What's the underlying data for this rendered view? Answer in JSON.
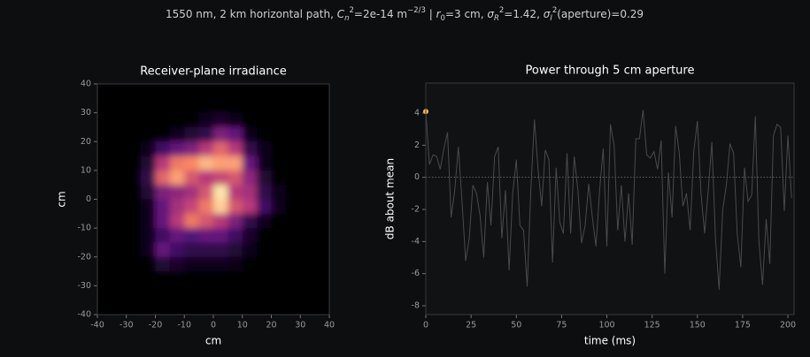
{
  "suptitle": [
    {
      "text": "1550 nm, 2 km horizontal path, "
    },
    {
      "text": "C",
      "italic": true
    },
    {
      "text": "n",
      "sub": true,
      "italic": true
    },
    {
      "text": "2",
      "sup": true
    },
    {
      "text": "=2e-14 m"
    },
    {
      "text": "−2/3",
      "sup": true
    },
    {
      "text": "  |  "
    },
    {
      "text": "r",
      "italic": true
    },
    {
      "text": "0",
      "sub": true
    },
    {
      "text": "=3 cm, "
    },
    {
      "text": "σ",
      "italic": true
    },
    {
      "text": "R",
      "sub": true,
      "italic": true
    },
    {
      "text": "2",
      "sup": true
    },
    {
      "text": "=1.42, "
    },
    {
      "text": "σ",
      "italic": true
    },
    {
      "text": "I",
      "sub": true,
      "italic": true
    },
    {
      "text": "2",
      "sup": true
    },
    {
      "text": "(aperture)=0.29"
    }
  ],
  "chart_data": [
    {
      "type": "heatmap",
      "title": "Receiver-plane irradiance",
      "xlabel": "cm",
      "ylabel": "cm",
      "xlim": [
        -40,
        40
      ],
      "ylim": [
        -40,
        40
      ],
      "xticks": [
        -40,
        -30,
        -20,
        -10,
        0,
        10,
        20,
        30,
        40
      ],
      "yticks": [
        -40,
        -30,
        -20,
        -10,
        0,
        10,
        20,
        30,
        40
      ],
      "colormap": "magma",
      "z": [
        [
          0,
          0,
          0,
          0,
          0,
          0,
          0,
          0,
          0,
          0,
          0,
          0,
          0,
          0,
          0,
          0
        ],
        [
          0,
          0,
          0,
          0,
          0,
          0,
          0,
          0,
          0,
          0,
          0,
          0,
          0,
          0,
          0,
          0
        ],
        [
          0,
          0,
          0,
          0,
          0,
          0,
          0,
          0.05,
          0.08,
          0.05,
          0,
          0,
          0,
          0,
          0,
          0
        ],
        [
          0,
          0,
          0,
          0,
          0,
          0.05,
          0.1,
          0.15,
          0.35,
          0.3,
          0.05,
          0,
          0,
          0,
          0,
          0
        ],
        [
          0,
          0,
          0,
          0.05,
          0.2,
          0.3,
          0.35,
          0.5,
          0.65,
          0.5,
          0.15,
          0.05,
          0,
          0,
          0,
          0
        ],
        [
          0,
          0,
          0,
          0.1,
          0.5,
          0.7,
          0.75,
          0.85,
          0.8,
          0.8,
          0.3,
          0.05,
          0,
          0,
          0,
          0
        ],
        [
          0,
          0,
          0,
          0.15,
          0.65,
          0.8,
          0.6,
          0.5,
          0.55,
          0.6,
          0.4,
          0.1,
          0,
          0,
          0,
          0
        ],
        [
          0,
          0,
          0,
          0.1,
          0.35,
          0.4,
          0.45,
          0.6,
          0.95,
          0.5,
          0.45,
          0.15,
          0.05,
          0,
          0,
          0
        ],
        [
          0,
          0,
          0,
          0.05,
          0.3,
          0.45,
          0.55,
          0.7,
          0.9,
          0.6,
          0.5,
          0.2,
          0.05,
          0,
          0,
          0
        ],
        [
          0,
          0,
          0,
          0.05,
          0.3,
          0.5,
          0.7,
          0.6,
          0.5,
          0.35,
          0.15,
          0.05,
          0,
          0,
          0,
          0
        ],
        [
          0,
          0,
          0,
          0.05,
          0.2,
          0.3,
          0.25,
          0.3,
          0.3,
          0.2,
          0.08,
          0,
          0,
          0,
          0,
          0
        ],
        [
          0,
          0,
          0,
          0.05,
          0.3,
          0.2,
          0.15,
          0.15,
          0.15,
          0.1,
          0.05,
          0,
          0,
          0,
          0,
          0
        ],
        [
          0,
          0,
          0,
          0,
          0.1,
          0.08,
          0.05,
          0.05,
          0.05,
          0.03,
          0,
          0,
          0,
          0,
          0,
          0
        ],
        [
          0,
          0,
          0,
          0,
          0,
          0,
          0,
          0,
          0,
          0,
          0,
          0,
          0,
          0,
          0,
          0
        ],
        [
          0,
          0,
          0,
          0,
          0,
          0,
          0,
          0,
          0,
          0,
          0,
          0,
          0,
          0,
          0,
          0
        ],
        [
          0,
          0,
          0,
          0,
          0,
          0,
          0,
          0,
          0,
          0,
          0,
          0,
          0,
          0,
          0,
          0
        ]
      ]
    },
    {
      "type": "line",
      "title": "Power through 5 cm aperture",
      "xlabel": "time (ms)",
      "ylabel": "dB about mean",
      "xlim": [
        0,
        203.4
      ],
      "ylim": [
        -8.55,
        5.87
      ],
      "xticks": [
        0,
        25,
        50,
        75,
        100,
        125,
        150,
        175,
        200
      ],
      "yticks": [
        -8,
        -6,
        -4,
        -2,
        0,
        2,
        4
      ],
      "reference_line": 0,
      "x": [
        0,
        2,
        4,
        6,
        8,
        10,
        12,
        14,
        16,
        18,
        20,
        22,
        24,
        26,
        28,
        30,
        32,
        34,
        36,
        38,
        40,
        42,
        44,
        46,
        48,
        50,
        52,
        54,
        56,
        58,
        60,
        62,
        64,
        66,
        68,
        70,
        72,
        74,
        76,
        78,
        80,
        82,
        84,
        86,
        88,
        90,
        92,
        94,
        96,
        98,
        100,
        102,
        104,
        106,
        108,
        110,
        112,
        114,
        116,
        118,
        120,
        122,
        124,
        126,
        128,
        130,
        132,
        134,
        136,
        138,
        140,
        142,
        144,
        146,
        148,
        150,
        152,
        154,
        156,
        158,
        160,
        162,
        164,
        166,
        168,
        170,
        172,
        174,
        176,
        178,
        180,
        182,
        184,
        186,
        188,
        190,
        192,
        194,
        196,
        198,
        200,
        202
      ],
      "series": [
        {
          "color": "#4a4a4e",
          "values": [
            4.1,
            0.8,
            1.4,
            1.3,
            0.5,
            1.8,
            2.8,
            -2.5,
            -0.8,
            1.9,
            -1.5,
            -5.2,
            -3.8,
            -0.5,
            -1.0,
            -2.4,
            -5.0,
            -0.3,
            -3.0,
            1.3,
            1.9,
            -3.8,
            -0.8,
            -5.8,
            -1.0,
            1.1,
            -3.0,
            -3.3,
            -6.8,
            -0.8,
            3.6,
            0.5,
            -1.8,
            1.7,
            1.1,
            -5.3,
            0.6,
            -2.8,
            -3.5,
            1.5,
            -3.5,
            1.3,
            -0.8,
            -4.1,
            -3.0,
            -0.4,
            -2.5,
            -4.3,
            -0.8,
            1.8,
            -4.3,
            3.3,
            2.0,
            -3.3,
            -0.5,
            -4.0,
            -1.0,
            -4.2,
            2.4,
            2.4,
            4.2,
            1.4,
            1.2,
            1.6,
            0.5,
            2.3,
            -6.0,
            0.3,
            -2.5,
            3.2,
            1.5,
            -1.8,
            -1.0,
            -3.3,
            1.6,
            3.5,
            -1.0,
            -3.5,
            -0.8,
            2.2,
            -3.8,
            -7.0,
            -2.0,
            -0.5,
            2.1,
            1.5,
            -3.5,
            -5.6,
            0.6,
            -1.5,
            -1.1,
            3.8,
            -4.0,
            -6.7,
            -2.6,
            -5.4,
            2.6,
            3.3,
            3.1,
            -2.1,
            2.6,
            -1.3
          ]
        }
      ],
      "highlight": {
        "x": 0,
        "y": 4.1,
        "color": "#f5b95c"
      }
    }
  ]
}
